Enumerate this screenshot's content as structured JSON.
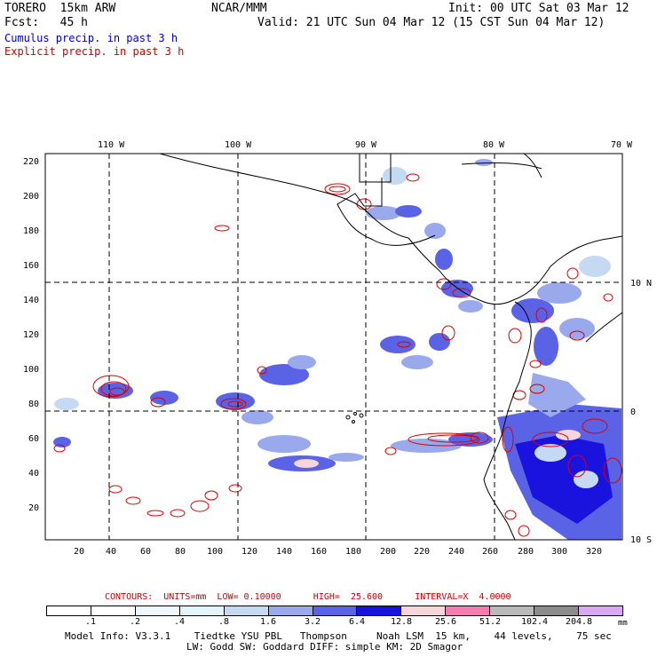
{
  "header": {
    "model_name": "TORERO  15km ARW",
    "center": "NCAR/MMM",
    "init": "Init: 00 UTC Sat 03 Mar 12",
    "forecast": "Fcst:   45 h",
    "valid": "Valid: 21 UTC Sun 04 Mar 12 (15 CST Sun 04 Mar 12)"
  },
  "captions": {
    "cumulus": "Cumulus precip. in past 3 h",
    "explicit": "Explicit precip. in past 3 h"
  },
  "colors": {
    "cumulus_caption": "#0000cc",
    "explicit_caption": "#cc0000",
    "contour": "#dd0000",
    "coastline": "#000000",
    "ocean": "#ffffff"
  },
  "map": {
    "lon_labels": [
      "110 W",
      "100 W",
      "90 W",
      "80 W",
      "70 W"
    ],
    "lat_labels": [
      "10 N",
      "0",
      "10 S"
    ],
    "y_ticks": [
      "220",
      "200",
      "180",
      "160",
      "140",
      "120",
      "100",
      "80",
      "60",
      "40",
      "20"
    ],
    "x_ticks": [
      "20",
      "40",
      "60",
      "80",
      "100",
      "120",
      "140",
      "160",
      "180",
      "200",
      "220",
      "240",
      "260",
      "280",
      "300",
      "320"
    ]
  },
  "contours_text": "CONTOURS:  UNITS=mm  LOW= 0.10000      HIGH=  25.600      INTERVAL=X  4.0000",
  "colorbar": {
    "colors": [
      "#ffffff",
      "#ffffff",
      "#eef8fb",
      "#e0f6fa",
      "#c5daf2",
      "#9aa8ec",
      "#5a62e6",
      "#1a12dd",
      "#f6d6da",
      "#f27eb0",
      "#b9b9b9",
      "#8c8c8c",
      "#d8a8f2"
    ],
    "labels": [
      ".1",
      ".2",
      ".4",
      ".8",
      "1.6",
      "3.2",
      "6.4",
      "12.8",
      "25.6",
      "51.2",
      "102.4",
      "204.8"
    ],
    "units": "mm"
  },
  "model_info": {
    "line1": "Model Info: V3.3.1    Tiedtke YSU PBL   Thompson     Noah LSM  15 km,    44 levels,    75 sec",
    "line2": "LW: Godd SW: Goddard DIFF: simple KM: 2D Smagor"
  }
}
